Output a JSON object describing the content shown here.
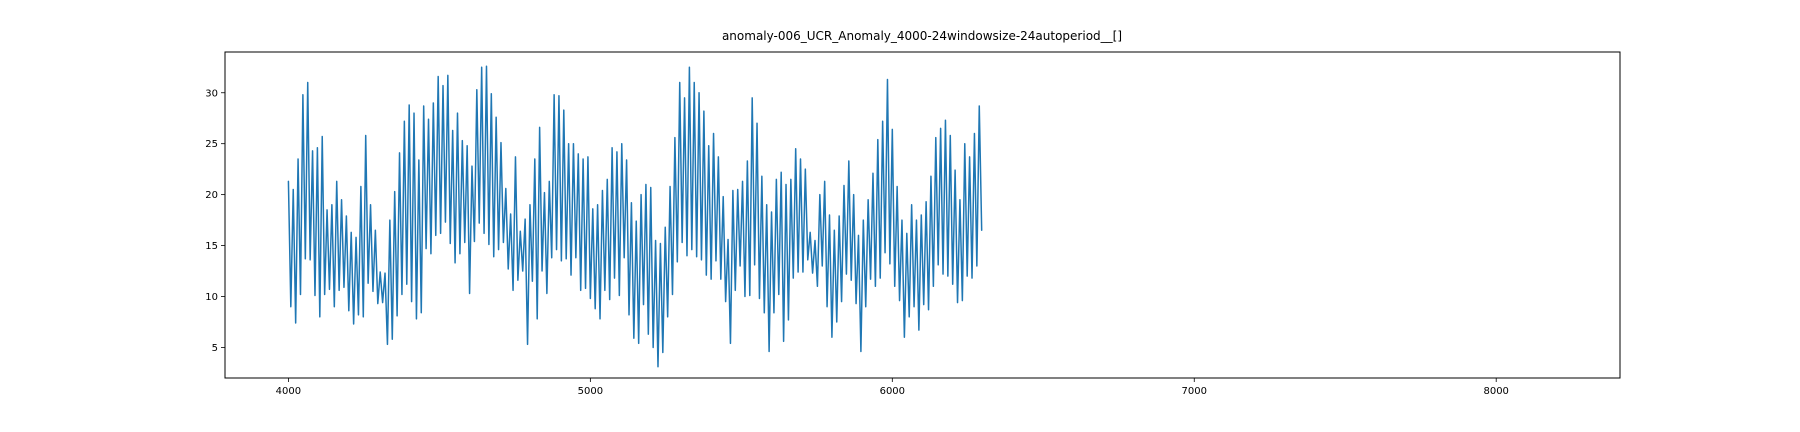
{
  "chart_data": {
    "type": "line",
    "title": "anomaly-006_UCR_Anomaly_4000-24windowsize-24autoperiod__[]",
    "xlabel": "",
    "ylabel": "",
    "xlim": [
      3790,
      8410
    ],
    "ylim": [
      2.0,
      34.0
    ],
    "x_ticks": [
      4000,
      5000,
      6000,
      7000,
      8000
    ],
    "y_ticks": [
      5,
      10,
      15,
      20,
      25,
      30
    ],
    "grid": false,
    "line_color": "#1f77b4",
    "series": [
      {
        "x_start": 4000,
        "x_step": 8,
        "values": [
          21.3,
          9.0,
          20.5,
          7.4,
          23.5,
          10.2,
          29.8,
          13.7,
          31.0,
          13.6,
          24.3,
          10.1,
          24.6,
          8.0,
          25.7,
          10.2,
          18.5,
          10.7,
          19.0,
          9.0,
          21.3,
          10.6,
          19.5,
          10.9,
          17.9,
          8.6,
          16.3,
          7.3,
          15.8,
          8.2,
          20.8,
          8.0,
          25.8,
          11.3,
          19.0,
          10.5,
          16.5,
          9.3,
          12.4,
          9.4,
          12.3,
          5.3,
          17.5,
          5.8,
          20.3,
          8.1,
          24.1,
          10.2,
          27.2,
          11.2,
          28.8,
          9.5,
          28.0,
          7.8,
          23.4,
          8.4,
          28.7,
          14.7,
          27.4,
          14.2,
          29.0,
          16.0,
          31.6,
          16.2,
          30.7,
          17.3,
          31.7,
          15.2,
          26.3,
          13.3,
          28.0,
          14.2,
          25.3,
          15.3,
          24.8,
          10.3,
          22.8,
          15.4,
          30.3,
          17.2,
          32.5,
          16.2,
          32.6,
          15.1,
          29.9,
          13.9,
          27.6,
          14.6,
          25.1,
          15.3,
          20.6,
          12.7,
          18.1,
          10.6,
          23.7,
          11.6,
          16.4,
          12.5,
          17.6,
          5.3,
          19.0,
          11.5,
          23.5,
          7.8,
          26.6,
          12.5,
          20.2,
          10.3,
          21.3,
          13.8,
          29.8,
          14.6,
          29.7,
          13.5,
          28.3,
          13.7,
          25.0,
          12.1,
          25.0,
          13.8,
          24.0,
          10.6,
          23.5,
          10.8,
          23.7,
          9.8,
          18.6,
          8.8,
          19.0,
          7.8,
          20.4,
          10.6,
          21.5,
          9.7,
          24.6,
          11.8,
          24.2,
          10.1,
          25.0,
          13.8,
          23.4,
          8.2,
          19.2,
          5.9,
          17.4,
          5.4,
          20.0,
          9.2,
          21.0,
          6.3,
          20.7,
          5.0,
          15.5,
          3.1,
          15.2,
          4.5,
          16.8,
          8.0,
          20.8,
          10.2,
          25.6,
          13.4,
          31.0,
          15.3,
          29.5,
          14.0,
          32.5,
          14.6,
          31.0,
          13.9,
          30.0,
          13.6,
          28.2,
          12.1,
          24.8,
          11.7,
          26.0,
          13.5,
          23.7,
          11.7,
          19.8,
          9.5,
          15.6,
          5.4,
          20.4,
          10.6,
          20.5,
          13.0,
          21.3,
          10.0,
          23.3,
          10.1,
          29.5,
          13.1,
          27.0,
          9.8,
          21.8,
          8.4,
          19.0,
          4.6,
          18.3,
          8.4,
          21.5,
          10.2,
          22.2,
          5.6,
          21.0,
          7.7,
          21.5,
          11.8,
          24.5,
          12.4,
          23.5,
          12.4,
          22.5,
          13.6,
          16.3,
          12.3,
          15.5,
          11.0,
          20.0,
          13.0,
          21.3,
          9.0,
          18.0,
          6.0,
          16.5,
          7.5,
          17.9,
          9.5,
          20.9,
          12.2,
          23.3,
          11.6,
          20.0,
          9.3,
          16.0,
          4.6,
          17.5,
          9.0,
          19.5,
          11.7,
          22.1,
          11.0,
          25.4,
          11.8,
          27.2,
          14.3,
          31.3,
          13.2,
          26.4,
          11.0,
          20.8,
          9.6,
          17.5,
          6.0,
          16.2,
          8.0,
          19.0,
          9.0,
          17.5,
          6.7,
          18.0,
          9.2,
          19.3,
          8.7,
          21.8,
          11.0,
          25.6,
          13.1,
          26.5,
          12.2,
          27.3,
          12.0,
          25.8,
          11.2,
          22.4,
          9.4,
          19.5,
          9.6,
          25.0,
          12.0,
          23.7,
          11.8,
          26.0,
          13.0,
          28.7,
          16.5
        ]
      }
    ]
  }
}
